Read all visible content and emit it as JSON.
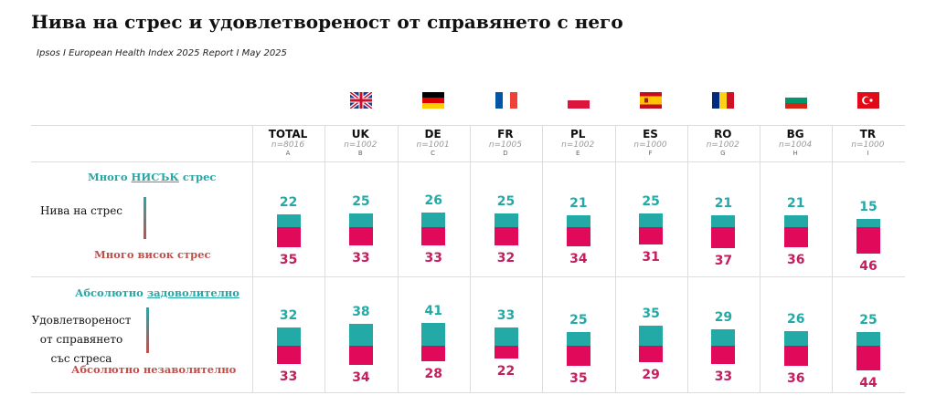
{
  "title": "Нива на стрес и удовлетвореност от справянето с него",
  "subtitle": "Ipsos I European Health Index 2025 Report I May 2025",
  "chart_data": [
    {
      "type": "bar",
      "title": "",
      "row_label": "Нива на стрес",
      "top_label_prefix": "Много ",
      "top_label_emph": "НИСЪК",
      "top_label_suffix": " стрес",
      "bottom_label": "Много висок стрес",
      "categories": [
        "TOTAL",
        "UK",
        "DE",
        "FR",
        "PL",
        "ES",
        "RO",
        "BG",
        "TR"
      ],
      "series": [
        {
          "name": "Много нисък стрес",
          "color": "#23aaa6",
          "values": [
            22,
            25,
            26,
            25,
            21,
            25,
            21,
            21,
            15
          ]
        },
        {
          "name": "Много висок стрес",
          "color": "#e0095a",
          "values": [
            35,
            33,
            33,
            32,
            34,
            31,
            37,
            36,
            46
          ]
        }
      ]
    },
    {
      "type": "bar",
      "title": "",
      "row_label": "Удовлетвореност от справянето със стреса",
      "top_label_prefix": "Абсолютно ",
      "top_label_emph": "задоволително",
      "top_label_suffix": "",
      "bottom_label": "Абсолютно незаволително",
      "categories": [
        "TOTAL",
        "UK",
        "DE",
        "FR",
        "PL",
        "ES",
        "RO",
        "BG",
        "TR"
      ],
      "series": [
        {
          "name": "Абсолютно задоволително",
          "color": "#23aaa6",
          "values": [
            32,
            38,
            41,
            33,
            25,
            35,
            29,
            26,
            25
          ]
        },
        {
          "name": "Абсолютно незаволително",
          "color": "#e0095a",
          "values": [
            33,
            34,
            28,
            22,
            35,
            29,
            33,
            36,
            44
          ]
        }
      ]
    }
  ],
  "columns": [
    {
      "code": "TOTAL",
      "n": "n=8016",
      "letter": "A",
      "flag": ""
    },
    {
      "code": "UK",
      "n": "n=1002",
      "letter": "B",
      "flag": "uk"
    },
    {
      "code": "DE",
      "n": "n=1001",
      "letter": "C",
      "flag": "de"
    },
    {
      "code": "FR",
      "n": "n=1005",
      "letter": "D",
      "flag": "fr"
    },
    {
      "code": "PL",
      "n": "n=1002",
      "letter": "E",
      "flag": "pl"
    },
    {
      "code": "ES",
      "n": "n=1000",
      "letter": "F",
      "flag": "es"
    },
    {
      "code": "RO",
      "n": "n=1002",
      "letter": "G",
      "flag": "ro"
    },
    {
      "code": "BG",
      "n": "n=1004",
      "letter": "H",
      "flag": "bg"
    },
    {
      "code": "TR",
      "n": "n=1000",
      "letter": "I",
      "flag": "tr"
    }
  ],
  "row_labels": {
    "stress_lines": [
      "Нива на стрес"
    ],
    "sat_lines": [
      "Удовлетвореност",
      "от справянето",
      "със стреса"
    ]
  }
}
